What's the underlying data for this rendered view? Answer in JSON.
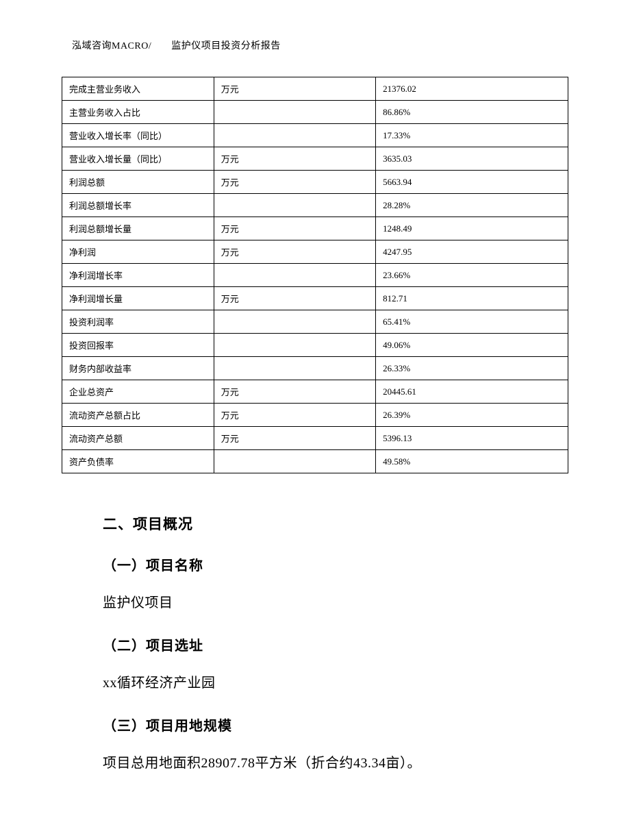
{
  "header": {
    "text": "泓域咨询MACRO/　　监护仪项目投资分析报告"
  },
  "table": {
    "rows": [
      {
        "label": "完成主营业务收入",
        "unit": "万元",
        "value": "21376.02"
      },
      {
        "label": "主营业务收入占比",
        "unit": "",
        "value": "86.86%"
      },
      {
        "label": "营业收入增长率（同比）",
        "unit": "",
        "value": "17.33%"
      },
      {
        "label": "营业收入增长量（同比）",
        "unit": "万元",
        "value": "3635.03"
      },
      {
        "label": "利润总额",
        "unit": "万元",
        "value": "5663.94"
      },
      {
        "label": "利润总额增长率",
        "unit": "",
        "value": "28.28%"
      },
      {
        "label": "利润总额增长量",
        "unit": "万元",
        "value": "1248.49"
      },
      {
        "label": "净利润",
        "unit": "万元",
        "value": "4247.95"
      },
      {
        "label": "净利润增长率",
        "unit": "",
        "value": "23.66%"
      },
      {
        "label": "净利润增长量",
        "unit": "万元",
        "value": "812.71"
      },
      {
        "label": "投资利润率",
        "unit": "",
        "value": "65.41%"
      },
      {
        "label": "投资回报率",
        "unit": "",
        "value": "49.06%"
      },
      {
        "label": "财务内部收益率",
        "unit": "",
        "value": "26.33%"
      },
      {
        "label": "企业总资产",
        "unit": "万元",
        "value": "20445.61"
      },
      {
        "label": "流动资产总额占比",
        "unit": "万元",
        "value": "26.39%"
      },
      {
        "label": "流动资产总额",
        "unit": "万元",
        "value": "5396.13"
      },
      {
        "label": "资产负债率",
        "unit": "",
        "value": "49.58%"
      }
    ]
  },
  "sections": {
    "main_heading": "二、项目概况",
    "sub1_heading": "（一）项目名称",
    "sub1_text": "监护仪项目",
    "sub2_heading": "（二）项目选址",
    "sub2_text": "xx循环经济产业园",
    "sub3_heading": "（三）项目用地规模",
    "sub3_text": "项目总用地面积28907.78平方米（折合约43.34亩）。"
  }
}
